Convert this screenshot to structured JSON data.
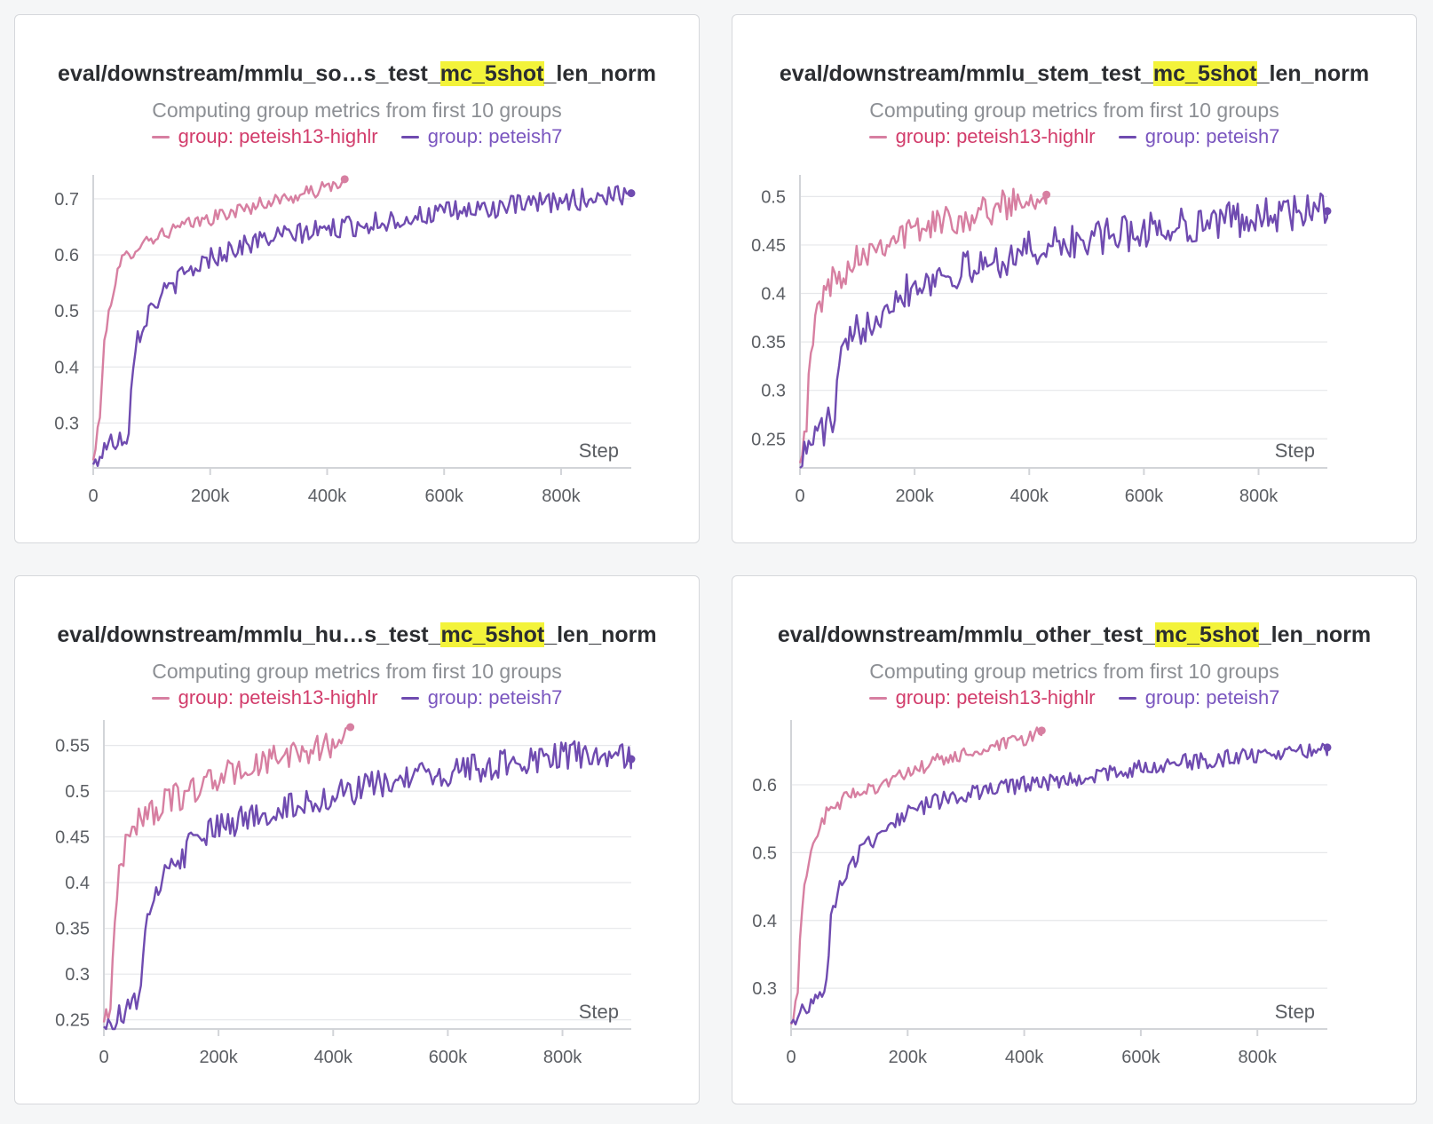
{
  "panels": [
    {
      "title": {
        "prefix": "eval/downstream/mmlu_so",
        "ellipsis": "…s",
        "middle": "_test_",
        "highlight": "mc_5shot",
        "suffix": "_len_norm"
      },
      "subtitle": "Computing group metrics from first 10 groups",
      "legend": [
        {
          "label": "group: peteish13-highlr",
          "color": "#d77fa1",
          "text_color": "#d23c6b"
        },
        {
          "label": "group: peteish7",
          "color": "#6f4bb0",
          "text_color": "#7a55bf"
        }
      ]
    },
    {
      "title": {
        "prefix": "eval/downstream/mmlu_stem_test_",
        "ellipsis": "",
        "middle": "",
        "highlight": "mc_5shot",
        "suffix": "_len_norm"
      },
      "subtitle": "Computing group metrics from first 10 groups",
      "legend": [
        {
          "label": "group: peteish13-highlr",
          "color": "#d77fa1",
          "text_color": "#d23c6b"
        },
        {
          "label": "group: peteish7",
          "color": "#6f4bb0",
          "text_color": "#7a55bf"
        }
      ]
    },
    {
      "title": {
        "prefix": "eval/downstream/mmlu_hu",
        "ellipsis": "…s",
        "middle": "_test_",
        "highlight": "mc_5shot",
        "suffix": "_len_norm"
      },
      "subtitle": "Computing group metrics from first 10 groups",
      "legend": [
        {
          "label": "group: peteish13-highlr",
          "color": "#d77fa1",
          "text_color": "#d23c6b"
        },
        {
          "label": "group: peteish7",
          "color": "#6f4bb0",
          "text_color": "#7a55bf"
        }
      ]
    },
    {
      "title": {
        "prefix": "eval/downstream/mmlu_other_test_",
        "ellipsis": "",
        "middle": "",
        "highlight": "mc_5shot",
        "suffix": "_len_norm"
      },
      "subtitle": "Computing group metrics from first 10 groups",
      "legend": [
        {
          "label": "group: peteish13-highlr",
          "color": "#d77fa1",
          "text_color": "#d23c6b"
        },
        {
          "label": "group: peteish7",
          "color": "#6f4bb0",
          "text_color": "#7a55bf"
        }
      ]
    }
  ],
  "chart_data": [
    {
      "type": "line",
      "title": "eval/downstream/mmlu_so…s_test_mc_5shot_len_norm",
      "xlabel": "Step",
      "xlim": [
        0,
        920000
      ],
      "ylim": [
        0.22,
        0.73
      ],
      "yticks": [
        0.3,
        0.4,
        0.5,
        0.6,
        0.7
      ],
      "ytick_labels": [
        "0.3",
        "0.4",
        "0.5",
        "0.6",
        "0.7"
      ],
      "xticks": [
        0,
        200000,
        400000,
        600000,
        800000
      ],
      "xtick_labels": [
        "0",
        "200k",
        "400k",
        "600k",
        "800k"
      ],
      "series": [
        {
          "name": "group: peteish13-highlr",
          "color": "#d77fa1",
          "noise": 0.008,
          "x": [
            0,
            10000,
            20000,
            30000,
            40000,
            50000,
            60000,
            80000,
            100000,
            150000,
            200000,
            250000,
            300000,
            350000,
            400000,
            430000
          ],
          "y": [
            0.23,
            0.3,
            0.45,
            0.52,
            0.56,
            0.59,
            0.6,
            0.62,
            0.63,
            0.65,
            0.665,
            0.68,
            0.695,
            0.705,
            0.72,
            0.735
          ]
        },
        {
          "name": "group: peteish7",
          "color": "#6f4bb0",
          "noise": 0.012,
          "x": [
            0,
            20000,
            40000,
            60000,
            70000,
            100000,
            150000,
            200000,
            250000,
            300000,
            400000,
            500000,
            600000,
            700000,
            800000,
            920000
          ],
          "y": [
            0.22,
            0.26,
            0.27,
            0.28,
            0.44,
            0.51,
            0.56,
            0.595,
            0.615,
            0.63,
            0.645,
            0.66,
            0.675,
            0.685,
            0.695,
            0.71
          ]
        }
      ]
    },
    {
      "type": "line",
      "title": "eval/downstream/mmlu_stem_test_mc_5shot_len_norm",
      "xlabel": "Step",
      "xlim": [
        0,
        920000
      ],
      "ylim": [
        0.22,
        0.515
      ],
      "yticks": [
        0.25,
        0.3,
        0.35,
        0.4,
        0.45,
        0.5
      ],
      "ytick_labels": [
        "0.25",
        "0.3",
        "0.35",
        "0.4",
        "0.45",
        "0.5"
      ],
      "xticks": [
        0,
        200000,
        400000,
        600000,
        800000
      ],
      "xtick_labels": [
        "0",
        "200k",
        "400k",
        "600k",
        "800k"
      ],
      "series": [
        {
          "name": "group: peteish13-highlr",
          "color": "#d77fa1",
          "noise": 0.01,
          "x": [
            0,
            10000,
            20000,
            30000,
            40000,
            60000,
            80000,
            100000,
            150000,
            200000,
            250000,
            300000,
            350000,
            400000,
            430000
          ],
          "y": [
            0.24,
            0.26,
            0.34,
            0.38,
            0.4,
            0.415,
            0.425,
            0.44,
            0.455,
            0.465,
            0.475,
            0.48,
            0.49,
            0.5,
            0.502
          ]
        },
        {
          "name": "group: peteish7",
          "color": "#6f4bb0",
          "noise": 0.012,
          "x": [
            0,
            20000,
            40000,
            60000,
            70000,
            100000,
            150000,
            200000,
            250000,
            300000,
            400000,
            500000,
            600000,
            700000,
            800000,
            920000
          ],
          "y": [
            0.22,
            0.25,
            0.26,
            0.27,
            0.33,
            0.36,
            0.39,
            0.41,
            0.42,
            0.425,
            0.445,
            0.455,
            0.465,
            0.472,
            0.48,
            0.485
          ]
        }
      ]
    },
    {
      "type": "line",
      "title": "eval/downstream/mmlu_hu…s_test_mc_5shot_len_norm",
      "xlabel": "Step",
      "xlim": [
        0,
        920000
      ],
      "ylim": [
        0.24,
        0.57
      ],
      "yticks": [
        0.25,
        0.3,
        0.35,
        0.4,
        0.45,
        0.5,
        0.55
      ],
      "ytick_labels": [
        "0.25",
        "0.3",
        "0.35",
        "0.4",
        "0.45",
        "0.5",
        "0.55"
      ],
      "xticks": [
        0,
        200000,
        400000,
        600000,
        800000
      ],
      "xtick_labels": [
        "0",
        "200k",
        "400k",
        "600k",
        "800k"
      ],
      "series": [
        {
          "name": "group: peteish13-highlr",
          "color": "#d77fa1",
          "noise": 0.01,
          "x": [
            0,
            10000,
            20000,
            30000,
            40000,
            50000,
            60000,
            80000,
            100000,
            150000,
            200000,
            250000,
            300000,
            350000,
            400000,
            430000
          ],
          "y": [
            0.25,
            0.26,
            0.37,
            0.42,
            0.45,
            0.46,
            0.47,
            0.475,
            0.485,
            0.5,
            0.515,
            0.525,
            0.535,
            0.545,
            0.55,
            0.57
          ]
        },
        {
          "name": "group: peteish7",
          "color": "#6f4bb0",
          "noise": 0.01,
          "x": [
            0,
            20000,
            40000,
            60000,
            70000,
            100000,
            150000,
            200000,
            250000,
            300000,
            400000,
            500000,
            600000,
            700000,
            800000,
            920000
          ],
          "y": [
            0.245,
            0.25,
            0.26,
            0.27,
            0.34,
            0.4,
            0.44,
            0.46,
            0.47,
            0.48,
            0.495,
            0.51,
            0.52,
            0.53,
            0.54,
            0.535
          ]
        }
      ]
    },
    {
      "type": "line",
      "title": "eval/downstream/mmlu_other_test_mc_5shot_len_norm",
      "xlabel": "Step",
      "xlim": [
        0,
        920000
      ],
      "ylim": [
        0.24,
        0.685
      ],
      "yticks": [
        0.3,
        0.4,
        0.5,
        0.6
      ],
      "ytick_labels": [
        "0.3",
        "0.4",
        "0.5",
        "0.6"
      ],
      "xticks": [
        0,
        200000,
        400000,
        600000,
        800000
      ],
      "xtick_labels": [
        "0",
        "200k",
        "400k",
        "600k",
        "800k"
      ],
      "series": [
        {
          "name": "group: peteish13-highlr",
          "color": "#d77fa1",
          "noise": 0.007,
          "x": [
            0,
            10000,
            20000,
            30000,
            40000,
            50000,
            60000,
            80000,
            100000,
            150000,
            200000,
            250000,
            300000,
            350000,
            400000,
            430000
          ],
          "y": [
            0.24,
            0.28,
            0.44,
            0.49,
            0.52,
            0.54,
            0.555,
            0.57,
            0.585,
            0.6,
            0.615,
            0.635,
            0.645,
            0.655,
            0.665,
            0.68
          ]
        },
        {
          "name": "group: peteish7",
          "color": "#6f4bb0",
          "noise": 0.008,
          "x": [
            0,
            20000,
            40000,
            60000,
            70000,
            100000,
            150000,
            200000,
            250000,
            300000,
            400000,
            500000,
            600000,
            700000,
            800000,
            920000
          ],
          "y": [
            0.24,
            0.27,
            0.285,
            0.3,
            0.42,
            0.48,
            0.53,
            0.56,
            0.575,
            0.585,
            0.6,
            0.61,
            0.625,
            0.635,
            0.645,
            0.655
          ]
        }
      ]
    }
  ]
}
